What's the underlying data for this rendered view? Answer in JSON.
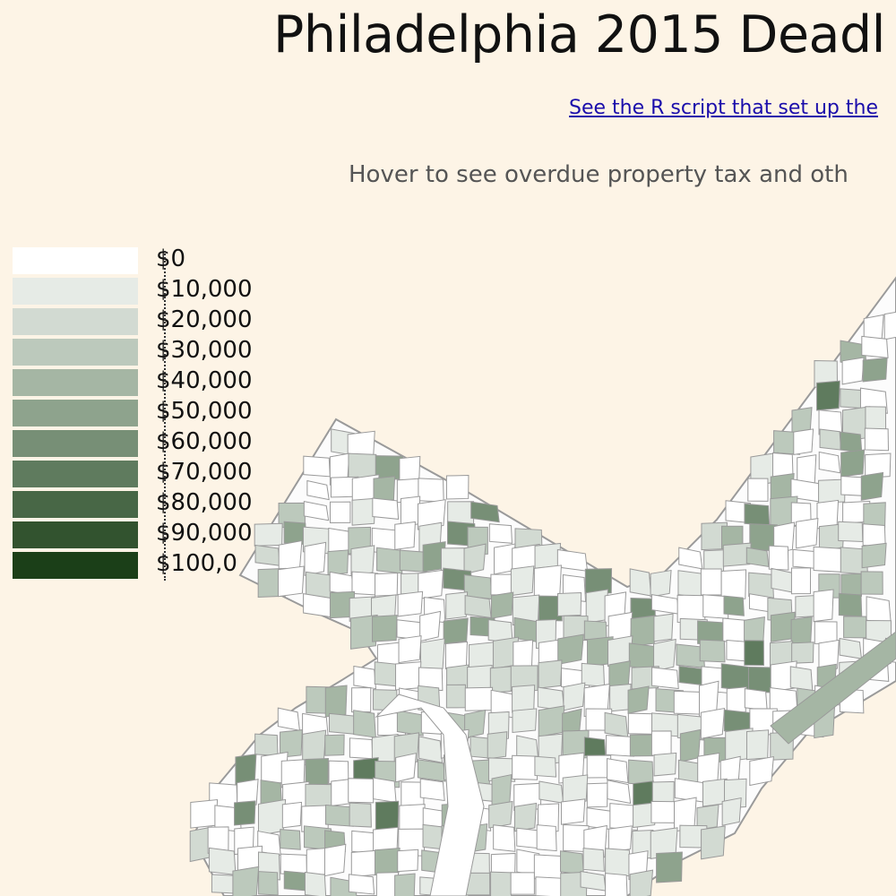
{
  "page": {
    "title": "Philadelphia 2015 Deadl",
    "link_text": "See the R script that set up the",
    "subtitle": "Hover to see overdue property tax and oth"
  },
  "legend": {
    "items": [
      {
        "label": "$0",
        "color": "#ffffff"
      },
      {
        "label": "$10,000",
        "color": "#e6ebe6"
      },
      {
        "label": "$20,000",
        "color": "#d2dad2"
      },
      {
        "label": "$30,000",
        "color": "#bcc9bc"
      },
      {
        "label": "$40,000",
        "color": "#a5b6a4"
      },
      {
        "label": "$50,000",
        "color": "#8ea38d"
      },
      {
        "label": "$60,000",
        "color": "#778f76"
      },
      {
        "label": "$70,000",
        "color": "#5f7b5e"
      },
      {
        "label": "$80,000",
        "color": "#486746"
      },
      {
        "label": "$90,000",
        "color": "#32532f"
      },
      {
        "label": "$100,0",
        "color": "#1b3f18"
      }
    ]
  },
  "map": {
    "boundary_color": "#9a9a9a",
    "land_color": "#fcfcfc"
  }
}
